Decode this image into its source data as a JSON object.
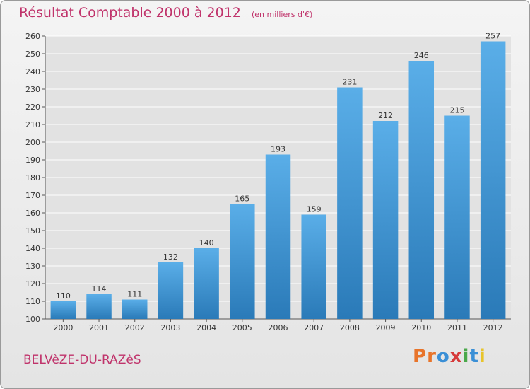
{
  "title": "Résultat Comptable 2000 à 2012",
  "subtitle": "(en milliers d'€)",
  "commune": "BELVèZE-DU-RAZèS",
  "logo": {
    "text": "Proxiti",
    "letters": [
      "P",
      "r",
      "o",
      "x",
      "i",
      "t",
      "i"
    ],
    "colors": [
      "#e8742a",
      "#e8742a",
      "#3a8fd6",
      "#d63a3a",
      "#4aa84a",
      "#3a8fd6",
      "#e8c42a"
    ]
  },
  "colors": {
    "bar_top": "#5aaee8",
    "bar_bottom": "#2a7ab8",
    "text_accent": "#c0336b",
    "grid": "#ffffff"
  },
  "chart_data": {
    "type": "bar",
    "categories": [
      "2000",
      "2001",
      "2002",
      "2003",
      "2004",
      "2005",
      "2006",
      "2007",
      "2008",
      "2009",
      "2010",
      "2011",
      "2012"
    ],
    "values": [
      110,
      114,
      111,
      132,
      140,
      165,
      193,
      159,
      231,
      212,
      246,
      215,
      257
    ],
    "title": "Résultat Comptable 2000 à 2012",
    "ylim": [
      100,
      260
    ],
    "yticks": [
      100,
      110,
      120,
      130,
      140,
      150,
      160,
      170,
      180,
      190,
      200,
      210,
      220,
      230,
      240,
      250,
      260
    ],
    "grid": true,
    "data_labels": true
  }
}
